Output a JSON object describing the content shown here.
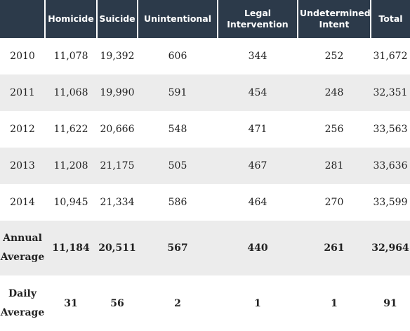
{
  "headers": [
    "",
    "Homicide",
    "Suicide",
    "Unintentional",
    "Legal Intervention",
    "Undetermined Intent",
    "Total"
  ],
  "rows": [
    {
      "label": "2010",
      "cells": [
        "11,078",
        "19,392",
        "606",
        "344",
        "252",
        "31,672"
      ]
    },
    {
      "label": "2011",
      "cells": [
        "11,068",
        "19,990",
        "591",
        "454",
        "248",
        "32,351"
      ]
    },
    {
      "label": "2012",
      "cells": [
        "11,622",
        "20,666",
        "548",
        "471",
        "256",
        "33,563"
      ]
    },
    {
      "label": "2013",
      "cells": [
        "11,208",
        "21,175",
        "505",
        "467",
        "281",
        "33,636"
      ]
    },
    {
      "label": "2014",
      "cells": [
        "10,945",
        "21,334",
        "586",
        "464",
        "270",
        "33,599"
      ]
    }
  ],
  "annual_average": {
    "label": "Annual Average",
    "cells": [
      "11,184",
      "20,511",
      "567",
      "440",
      "261",
      "32,964"
    ]
  },
  "daily_average": {
    "label": "Daily Average",
    "cells": [
      "31",
      "56",
      "2",
      "1",
      "1",
      "91"
    ]
  },
  "colors": {
    "header_bg": "#2c3a4a",
    "header_text": "#ffffff",
    "stripe": "#ececec"
  }
}
